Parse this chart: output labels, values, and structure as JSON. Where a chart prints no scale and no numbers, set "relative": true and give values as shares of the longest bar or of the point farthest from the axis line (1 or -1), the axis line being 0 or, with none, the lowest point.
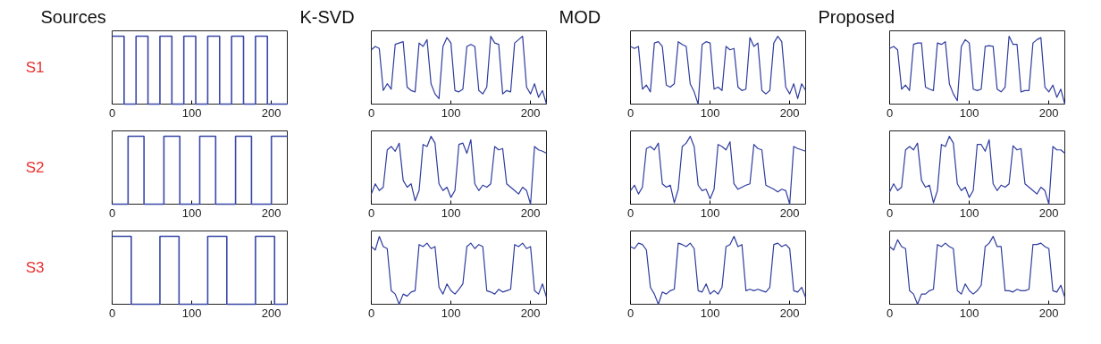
{
  "chart_data": [
    {
      "type": "step",
      "title": "Sources",
      "ylabel": "S1",
      "relative": true,
      "color": "#3a48a8",
      "xlim": [
        0,
        220
      ],
      "xticks": [
        0,
        100,
        200
      ],
      "x": [
        0,
        15,
        30,
        45,
        60,
        75,
        90,
        105,
        120,
        135,
        150,
        165,
        180,
        195,
        220
      ],
      "values": [
        1,
        0,
        1,
        0,
        1,
        0,
        1,
        0,
        1,
        0,
        1,
        0,
        1,
        0,
        0
      ]
    },
    {
      "type": "line",
      "title": "K-SVD",
      "relative": true,
      "color": "#2e3c9e",
      "xlim": [
        0,
        220
      ],
      "xticks": [
        0,
        100,
        200
      ],
      "x": [
        0,
        5,
        10,
        15,
        20,
        25,
        30,
        35,
        40,
        45,
        50,
        55,
        60,
        65,
        70,
        75,
        80,
        85,
        90,
        95,
        100,
        105,
        110,
        115,
        120,
        125,
        130,
        135,
        140,
        145,
        150,
        155,
        160,
        165,
        170,
        175,
        180,
        185,
        190,
        195,
        200,
        205,
        210,
        215,
        220
      ],
      "values": [
        0.8,
        0.85,
        0.82,
        0.2,
        0.3,
        0.22,
        0.88,
        0.9,
        0.92,
        0.25,
        0.2,
        0.18,
        0.9,
        0.85,
        0.95,
        0.3,
        0.15,
        0.08,
        0.85,
        0.98,
        0.9,
        0.2,
        0.18,
        0.22,
        0.85,
        0.88,
        0.85,
        0.2,
        0.15,
        0.25,
        1.0,
        0.9,
        0.88,
        0.15,
        0.2,
        0.18,
        0.9,
        0.95,
        1.0,
        0.25,
        0.15,
        0.3,
        0.1,
        0.2,
        0.0
      ]
    },
    {
      "type": "line",
      "title": "MOD",
      "relative": true,
      "color": "#2e3c9e",
      "xlim": [
        0,
        220
      ],
      "xticks": [
        0,
        100,
        200
      ],
      "x": [
        0,
        5,
        10,
        15,
        20,
        25,
        30,
        35,
        40,
        45,
        50,
        55,
        60,
        65,
        70,
        75,
        80,
        85,
        90,
        95,
        100,
        105,
        110,
        115,
        120,
        125,
        130,
        135,
        140,
        145,
        150,
        155,
        160,
        165,
        170,
        175,
        180,
        185,
        190,
        195,
        200,
        205,
        210,
        215,
        220
      ],
      "values": [
        0.85,
        0.82,
        0.85,
        0.22,
        0.28,
        0.18,
        0.9,
        0.92,
        0.85,
        0.28,
        0.25,
        0.3,
        0.92,
        0.88,
        0.85,
        0.3,
        0.18,
        0.0,
        0.88,
        0.92,
        0.9,
        0.22,
        0.25,
        0.2,
        0.85,
        0.8,
        0.82,
        0.25,
        0.2,
        0.22,
        0.98,
        0.85,
        0.9,
        0.2,
        0.15,
        0.2,
        0.9,
        1.0,
        0.92,
        0.25,
        0.15,
        0.3,
        0.08,
        0.3,
        0.2
      ]
    },
    {
      "type": "line",
      "title": "Proposed",
      "relative": true,
      "color": "#2e3c9e",
      "xlim": [
        0,
        220
      ],
      "xticks": [
        0,
        100,
        200
      ],
      "x": [
        0,
        5,
        10,
        15,
        20,
        25,
        30,
        35,
        40,
        45,
        50,
        55,
        60,
        65,
        70,
        75,
        80,
        85,
        90,
        95,
        100,
        105,
        110,
        115,
        120,
        125,
        130,
        135,
        140,
        145,
        150,
        155,
        160,
        165,
        170,
        175,
        180,
        185,
        190,
        195,
        200,
        205,
        210,
        215,
        220
      ],
      "values": [
        0.82,
        0.85,
        0.8,
        0.22,
        0.28,
        0.2,
        0.88,
        0.9,
        0.9,
        0.25,
        0.22,
        0.2,
        0.9,
        0.88,
        0.92,
        0.3,
        0.15,
        0.05,
        0.85,
        0.95,
        0.9,
        0.22,
        0.2,
        0.22,
        0.85,
        0.86,
        0.85,
        0.22,
        0.18,
        0.25,
        1.0,
        0.88,
        0.88,
        0.18,
        0.2,
        0.2,
        0.9,
        0.95,
        0.98,
        0.25,
        0.18,
        0.28,
        0.1,
        0.22,
        0.0
      ]
    },
    {
      "type": "step",
      "ylabel": "S2",
      "relative": true,
      "color": "#3a48a8",
      "xlim": [
        0,
        220
      ],
      "xticks": [
        0,
        100,
        200
      ],
      "x": [
        0,
        20,
        40,
        65,
        85,
        110,
        130,
        155,
        175,
        200,
        220
      ],
      "values": [
        0,
        1,
        0,
        1,
        0,
        1,
        0,
        1,
        0,
        1,
        1
      ]
    },
    {
      "type": "line",
      "relative": true,
      "color": "#2e3c9e",
      "xlim": [
        0,
        220
      ],
      "xticks": [
        0,
        100,
        200
      ],
      "x": [
        0,
        5,
        10,
        15,
        20,
        25,
        30,
        35,
        40,
        45,
        50,
        55,
        60,
        65,
        70,
        75,
        80,
        85,
        90,
        95,
        100,
        105,
        110,
        115,
        120,
        125,
        130,
        135,
        140,
        145,
        150,
        155,
        160,
        165,
        170,
        175,
        180,
        185,
        190,
        195,
        200,
        205,
        210,
        215,
        220
      ],
      "values": [
        0.15,
        0.3,
        0.2,
        0.25,
        0.8,
        0.85,
        0.78,
        0.9,
        0.35,
        0.25,
        0.3,
        0.05,
        0.2,
        0.88,
        0.85,
        1.0,
        0.9,
        0.3,
        0.2,
        0.25,
        0.1,
        0.2,
        0.88,
        0.9,
        0.75,
        0.95,
        0.3,
        0.2,
        0.28,
        0.25,
        0.3,
        0.85,
        0.8,
        0.82,
        0.3,
        0.25,
        0.2,
        0.15,
        0.25,
        0.2,
        0.0,
        0.85,
        0.8,
        0.78,
        0.75
      ]
    },
    {
      "type": "line",
      "relative": true,
      "color": "#2e3c9e",
      "xlim": [
        0,
        220
      ],
      "xticks": [
        0,
        100,
        200
      ],
      "x": [
        0,
        5,
        10,
        15,
        20,
        25,
        30,
        35,
        40,
        45,
        50,
        55,
        60,
        65,
        70,
        75,
        80,
        85,
        90,
        95,
        100,
        105,
        110,
        115,
        120,
        125,
        130,
        135,
        140,
        145,
        150,
        155,
        160,
        165,
        170,
        175,
        180,
        185,
        190,
        195,
        200,
        205,
        210,
        215,
        220
      ],
      "values": [
        0.2,
        0.28,
        0.15,
        0.25,
        0.82,
        0.85,
        0.8,
        0.9,
        0.3,
        0.25,
        0.28,
        0.02,
        0.22,
        0.85,
        0.9,
        1.0,
        0.85,
        0.28,
        0.2,
        0.22,
        0.08,
        0.22,
        0.88,
        0.85,
        0.8,
        0.92,
        0.3,
        0.22,
        0.25,
        0.28,
        0.3,
        0.88,
        0.82,
        0.8,
        0.28,
        0.25,
        0.22,
        0.18,
        0.22,
        0.2,
        0.0,
        0.85,
        0.82,
        0.8,
        0.78
      ]
    },
    {
      "type": "line",
      "relative": true,
      "color": "#2e3c9e",
      "xlim": [
        0,
        220
      ],
      "xticks": [
        0,
        100,
        200
      ],
      "x": [
        0,
        5,
        10,
        15,
        20,
        25,
        30,
        35,
        40,
        45,
        50,
        55,
        60,
        65,
        70,
        75,
        80,
        85,
        90,
        95,
        100,
        105,
        110,
        115,
        120,
        125,
        130,
        135,
        140,
        145,
        150,
        155,
        160,
        165,
        170,
        175,
        180,
        185,
        190,
        195,
        200,
        205,
        210,
        215,
        220
      ],
      "values": [
        0.18,
        0.3,
        0.2,
        0.25,
        0.8,
        0.85,
        0.8,
        0.9,
        0.35,
        0.25,
        0.28,
        0.02,
        0.2,
        0.88,
        0.85,
        1.0,
        0.9,
        0.3,
        0.2,
        0.25,
        0.1,
        0.2,
        0.88,
        0.88,
        0.78,
        0.95,
        0.3,
        0.2,
        0.28,
        0.25,
        0.3,
        0.86,
        0.8,
        0.82,
        0.3,
        0.25,
        0.2,
        0.15,
        0.25,
        0.2,
        0.0,
        0.85,
        0.8,
        0.8,
        0.75
      ]
    },
    {
      "type": "step",
      "ylabel": "S3",
      "relative": true,
      "color": "#3a48a8",
      "xlim": [
        0,
        220
      ],
      "xticks": [
        0,
        100,
        200
      ],
      "x": [
        0,
        24,
        60,
        84,
        120,
        144,
        180,
        204,
        220
      ],
      "values": [
        1,
        0,
        1,
        0,
        1,
        0,
        1,
        0,
        0
      ]
    },
    {
      "type": "line",
      "relative": true,
      "color": "#2e3c9e",
      "xlim": [
        0,
        220
      ],
      "xticks": [
        0,
        100,
        200
      ],
      "x": [
        0,
        5,
        10,
        15,
        20,
        25,
        30,
        35,
        40,
        45,
        50,
        55,
        60,
        65,
        70,
        75,
        80,
        85,
        90,
        95,
        100,
        105,
        110,
        115,
        120,
        125,
        130,
        135,
        140,
        145,
        150,
        155,
        160,
        165,
        170,
        175,
        180,
        185,
        190,
        195,
        200,
        205,
        210,
        215,
        220
      ],
      "values": [
        0.85,
        0.8,
        1.0,
        0.85,
        0.82,
        0.2,
        0.15,
        0.0,
        0.15,
        0.12,
        0.18,
        0.2,
        0.88,
        0.85,
        0.9,
        0.82,
        0.85,
        0.25,
        0.15,
        0.3,
        0.2,
        0.15,
        0.22,
        0.3,
        0.85,
        0.9,
        0.82,
        0.88,
        0.85,
        0.2,
        0.18,
        0.15,
        0.22,
        0.18,
        0.2,
        0.22,
        0.88,
        0.85,
        0.9,
        0.82,
        0.85,
        0.2,
        0.15,
        0.3,
        0.1
      ]
    },
    {
      "type": "line",
      "relative": true,
      "color": "#2e3c9e",
      "xlim": [
        0,
        220
      ],
      "xticks": [
        0,
        100,
        200
      ],
      "x": [
        0,
        5,
        10,
        15,
        20,
        25,
        30,
        35,
        40,
        45,
        50,
        55,
        60,
        65,
        70,
        75,
        80,
        85,
        90,
        95,
        100,
        105,
        110,
        115,
        120,
        125,
        130,
        135,
        140,
        145,
        150,
        155,
        160,
        165,
        170,
        175,
        180,
        185,
        190,
        195,
        200,
        205,
        210,
        215,
        220
      ],
      "values": [
        0.85,
        0.82,
        0.9,
        0.88,
        0.8,
        0.25,
        0.15,
        0.0,
        0.18,
        0.15,
        0.2,
        0.22,
        0.9,
        0.88,
        0.85,
        0.9,
        0.82,
        0.2,
        0.18,
        0.3,
        0.15,
        0.2,
        0.15,
        0.25,
        0.85,
        0.88,
        1.0,
        0.85,
        0.88,
        0.2,
        0.22,
        0.2,
        0.22,
        0.2,
        0.18,
        0.25,
        0.88,
        0.9,
        0.85,
        0.88,
        0.82,
        0.2,
        0.18,
        0.25,
        0.1
      ]
    },
    {
      "type": "line",
      "relative": true,
      "color": "#2e3c9e",
      "xlim": [
        0,
        220
      ],
      "xticks": [
        0,
        100,
        200
      ],
      "x": [
        0,
        5,
        10,
        15,
        20,
        25,
        30,
        35,
        40,
        45,
        50,
        55,
        60,
        65,
        70,
        75,
        80,
        85,
        90,
        95,
        100,
        105,
        110,
        115,
        120,
        125,
        130,
        135,
        140,
        145,
        150,
        155,
        160,
        165,
        170,
        175,
        180,
        185,
        190,
        195,
        200,
        205,
        210,
        215,
        220
      ],
      "values": [
        0.85,
        0.8,
        0.95,
        0.85,
        0.82,
        0.2,
        0.15,
        0.0,
        0.15,
        0.15,
        0.2,
        0.22,
        0.88,
        0.85,
        0.9,
        0.85,
        0.82,
        0.2,
        0.15,
        0.3,
        0.2,
        0.15,
        0.2,
        0.28,
        0.85,
        0.9,
        1.0,
        0.85,
        0.85,
        0.2,
        0.2,
        0.18,
        0.22,
        0.2,
        0.2,
        0.22,
        0.88,
        0.88,
        0.9,
        0.85,
        0.82,
        0.2,
        0.18,
        0.28,
        0.1
      ]
    }
  ]
}
